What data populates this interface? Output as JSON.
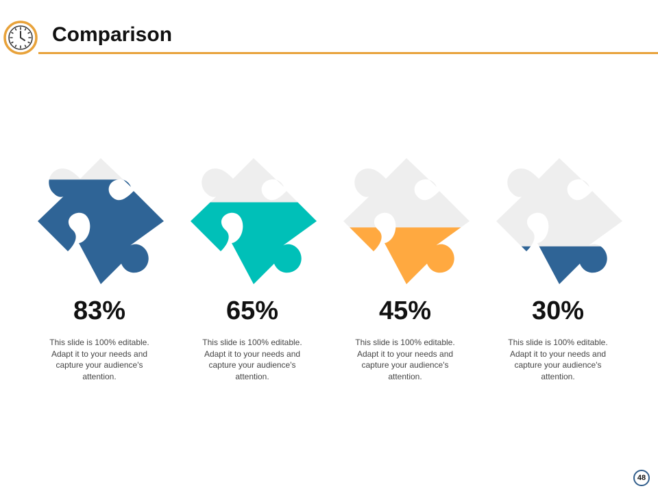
{
  "header": {
    "title": "Comparison",
    "icon": "clock-icon",
    "accent_color": "#e8a23a"
  },
  "items": [
    {
      "percent_label": "83%",
      "fill_fraction": 0.83,
      "color": "#2f6496",
      "description": "This slide is 100% editable. Adapt it to your needs and capture your audience's attention."
    },
    {
      "percent_label": "65%",
      "fill_fraction": 0.65,
      "color": "#00c0b8",
      "description": "This slide is 100% editable. Adapt it to your needs and capture your audience's attention."
    },
    {
      "percent_label": "45%",
      "fill_fraction": 0.45,
      "color": "#ffa940",
      "description": "This slide is 100% editable. Adapt it to your needs and capture your audience's attention."
    },
    {
      "percent_label": "30%",
      "fill_fraction": 0.3,
      "color": "#2f6496",
      "description": "This slide is 100% editable. Adapt it to your needs and capture your audience's attention."
    }
  ],
  "empty_color": "#eeeeee",
  "footer": {
    "page_number": "48"
  }
}
